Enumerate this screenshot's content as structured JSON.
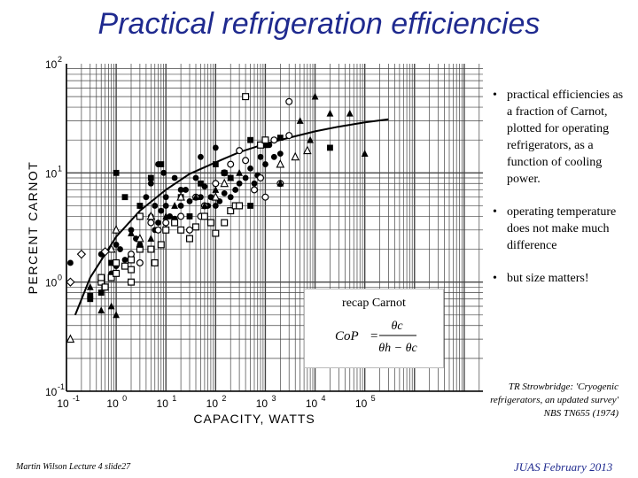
{
  "slide": {
    "title": "Practical refrigeration efficiencies",
    "footer_left": "Martin Wilson Lecture 4 slide27",
    "footer_right": "JUAS February 2013",
    "reference": "TR Strowbridge: 'Cryogenic refrigerators, an updated survey' NBS TN655 (1974)",
    "bullets": [
      "practical efficiencies as a fraction of Carnot, plotted for operating refrigerators, as a function of cooling power.",
      "operating temperature does not make much difference",
      "but size matters!"
    ],
    "bullet_char": "•",
    "inset": {
      "label": "recap Carnot",
      "lhs": "CoP",
      "eq": "=",
      "num": "θc",
      "den": "θh − θc"
    }
  },
  "chart_data": {
    "type": "scatter",
    "xlabel": "CAPACITY, WATTS",
    "ylabel": "PERCENT CARNOT",
    "xscale": "log",
    "yscale": "log",
    "xlim": [
      0.1,
      100000000
    ],
    "ylim": [
      0.1,
      100
    ],
    "grid": true,
    "x_ticks": [
      {
        "base": "10",
        "exp": "-1"
      },
      {
        "base": "10",
        "exp": "0"
      },
      {
        "base": "10",
        "exp": "1"
      },
      {
        "base": "10",
        "exp": "2"
      },
      {
        "base": "10",
        "exp": "3"
      },
      {
        "base": "10",
        "exp": "4"
      },
      {
        "base": "10",
        "exp": "5"
      }
    ],
    "y_ticks": [
      {
        "base": "10",
        "exp": "-1"
      },
      {
        "base": "10",
        "exp": "0"
      },
      {
        "base": "10",
        "exp": "1"
      },
      {
        "base": "10",
        "exp": "2"
      }
    ],
    "trend": {
      "x": [
        0.15,
        0.3,
        1,
        3,
        10,
        30,
        100,
        300,
        1000,
        3000,
        10000,
        30000,
        100000,
        300000
      ],
      "y": [
        0.5,
        1.1,
        2.6,
        4.5,
        7,
        9.8,
        12.5,
        15.5,
        18.5,
        21,
        24,
        26.5,
        29,
        31
      ]
    },
    "series": [
      {
        "marker": "filled-circle",
        "points": [
          [
            0.12,
            1.5
          ],
          [
            0.5,
            1.8
          ],
          [
            0.8,
            1.2
          ],
          [
            1,
            1.4
          ],
          [
            1.2,
            2
          ],
          [
            1.5,
            1.6
          ],
          [
            1,
            2.2
          ],
          [
            2,
            3
          ],
          [
            2.5,
            2.5
          ],
          [
            3,
            5
          ],
          [
            4,
            6
          ],
          [
            5,
            4
          ],
          [
            6,
            5
          ],
          [
            7,
            3.5
          ],
          [
            8,
            4.5
          ],
          [
            10,
            5
          ],
          [
            12,
            4
          ],
          [
            15,
            3.8
          ],
          [
            20,
            5
          ],
          [
            25,
            7
          ],
          [
            30,
            5.5
          ],
          [
            40,
            9
          ],
          [
            50,
            6
          ],
          [
            60,
            7.5
          ],
          [
            70,
            5
          ],
          [
            80,
            6
          ],
          [
            100,
            5
          ],
          [
            120,
            5.5
          ],
          [
            150,
            6.5
          ],
          [
            200,
            6
          ],
          [
            250,
            7
          ],
          [
            300,
            8
          ],
          [
            400,
            9
          ],
          [
            500,
            11
          ],
          [
            600,
            8
          ],
          [
            700,
            9.5
          ],
          [
            800,
            14
          ],
          [
            1000,
            12
          ],
          [
            1200,
            18
          ],
          [
            1500,
            14
          ],
          [
            2000,
            15
          ],
          [
            100,
            17
          ],
          [
            50,
            14
          ],
          [
            30,
            4
          ],
          [
            10,
            6
          ],
          [
            20,
            7
          ],
          [
            3,
            2.2
          ],
          [
            6,
            3
          ],
          [
            5,
            8
          ],
          [
            15,
            9
          ],
          [
            7,
            12
          ],
          [
            9,
            10
          ]
        ]
      },
      {
        "marker": "open-circle",
        "points": [
          [
            2,
            1.8
          ],
          [
            3,
            1.5
          ],
          [
            5,
            3.5
          ],
          [
            7,
            3
          ],
          [
            10,
            3.5
          ],
          [
            20,
            4
          ],
          [
            30,
            3
          ],
          [
            40,
            6
          ],
          [
            50,
            4
          ],
          [
            60,
            5
          ],
          [
            100,
            8
          ],
          [
            150,
            10
          ],
          [
            200,
            12
          ],
          [
            300,
            16
          ],
          [
            400,
            13
          ],
          [
            600,
            7
          ],
          [
            800,
            9
          ],
          [
            1000,
            6
          ],
          [
            2000,
            8
          ],
          [
            3000,
            45
          ],
          [
            1500,
            20
          ],
          [
            3000,
            22
          ]
        ]
      },
      {
        "marker": "filled-square",
        "points": [
          [
            0.3,
            0.75
          ],
          [
            0.3,
            0.7
          ],
          [
            0.5,
            0.8
          ],
          [
            0.8,
            1.5
          ],
          [
            1,
            10
          ],
          [
            1.5,
            6
          ],
          [
            3,
            5
          ],
          [
            5,
            9
          ],
          [
            8,
            12
          ],
          [
            20,
            6
          ],
          [
            30,
            4
          ],
          [
            50,
            8
          ],
          [
            100,
            12
          ],
          [
            150,
            10
          ],
          [
            200,
            9
          ],
          [
            500,
            5
          ],
          [
            1000,
            18
          ],
          [
            2000,
            21
          ],
          [
            20000,
            17
          ],
          [
            500,
            20
          ]
        ]
      },
      {
        "marker": "open-square",
        "points": [
          [
            0.5,
            1
          ],
          [
            0.5,
            1.1
          ],
          [
            0.6,
            0.9
          ],
          [
            0.8,
            1.1
          ],
          [
            1,
            1.2
          ],
          [
            1,
            1.5
          ],
          [
            1.5,
            1.4
          ],
          [
            2,
            1.6
          ],
          [
            2,
            1.3
          ],
          [
            2,
            1
          ],
          [
            3,
            4
          ],
          [
            3,
            2
          ],
          [
            5,
            2
          ],
          [
            6,
            1.5
          ],
          [
            8,
            2.2
          ],
          [
            10,
            3
          ],
          [
            15,
            3.5
          ],
          [
            20,
            3
          ],
          [
            30,
            2.5
          ],
          [
            40,
            3.2
          ],
          [
            60,
            4
          ],
          [
            80,
            3.5
          ],
          [
            100,
            2.8
          ],
          [
            150,
            3.5
          ],
          [
            200,
            4.5
          ],
          [
            250,
            5
          ],
          [
            300,
            5
          ],
          [
            400,
            50
          ],
          [
            800,
            18
          ],
          [
            1000,
            20
          ]
        ]
      },
      {
        "marker": "filled-triangle",
        "points": [
          [
            0.3,
            0.9
          ],
          [
            0.5,
            0.55
          ],
          [
            0.8,
            0.6
          ],
          [
            1,
            0.5
          ],
          [
            2,
            2.8
          ],
          [
            3,
            2.2
          ],
          [
            5,
            2.5
          ],
          [
            10,
            4
          ],
          [
            15,
            5
          ],
          [
            20,
            6
          ],
          [
            40,
            6
          ],
          [
            60,
            5
          ],
          [
            100,
            7
          ],
          [
            200,
            9
          ],
          [
            300,
            10
          ],
          [
            2000,
            8
          ],
          [
            5000,
            30
          ],
          [
            8000,
            20
          ],
          [
            10000,
            50
          ],
          [
            20000,
            35
          ],
          [
            50000,
            35
          ],
          [
            100000,
            15
          ]
        ]
      },
      {
        "marker": "open-triangle",
        "points": [
          [
            0.12,
            0.3
          ],
          [
            1,
            3
          ],
          [
            0.8,
            2
          ],
          [
            3,
            2.5
          ],
          [
            5,
            4
          ],
          [
            20,
            6
          ],
          [
            100,
            6
          ],
          [
            150,
            8
          ],
          [
            2000,
            12
          ],
          [
            4000,
            14
          ],
          [
            7000,
            16
          ]
        ]
      },
      {
        "marker": "open-diamond",
        "points": [
          [
            0.12,
            1
          ],
          [
            0.2,
            1.8
          ],
          [
            0.6,
            1.9
          ]
        ]
      }
    ]
  }
}
